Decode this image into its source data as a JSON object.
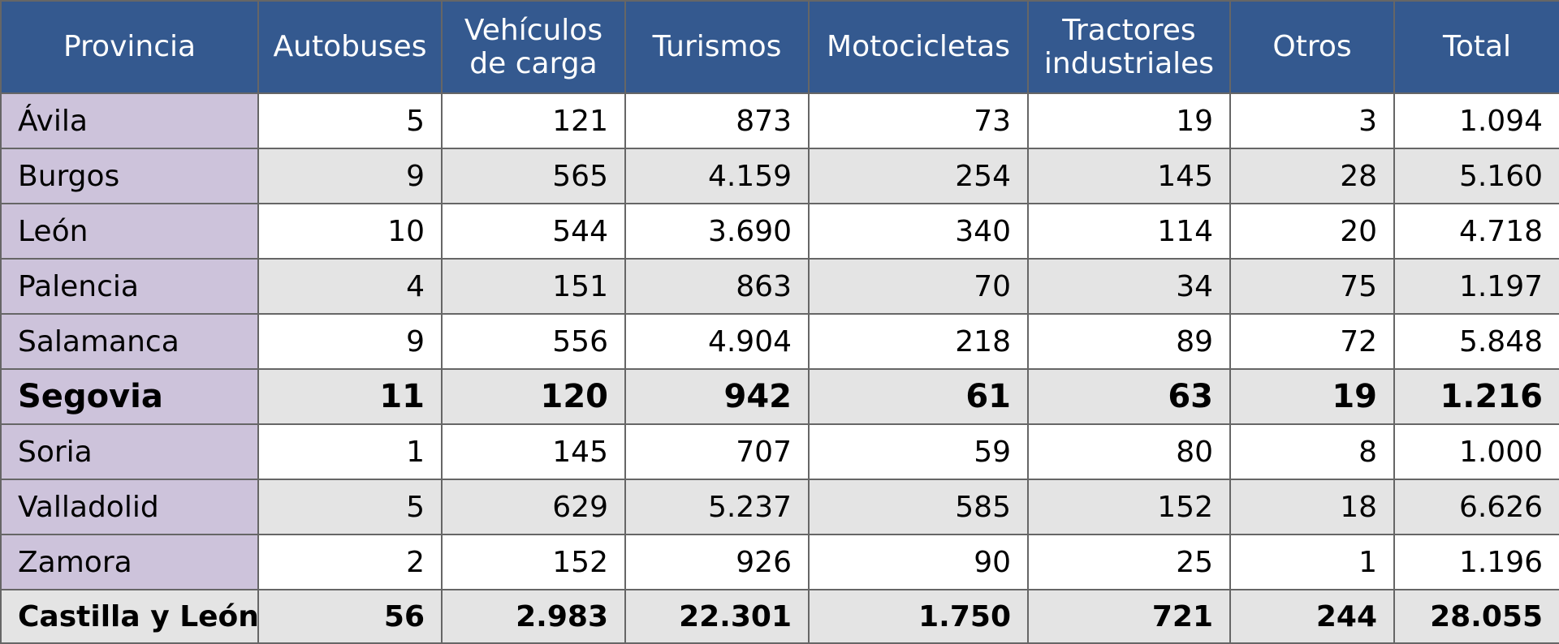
{
  "colors": {
    "header_bg": "#34598f",
    "header_text": "#ffffff",
    "province_bg": "#cdc3db",
    "row_alt_bg": "#e4e4e4",
    "border": "#666666"
  },
  "headers": [
    "Provincia",
    "Autobuses",
    "Vehículos de carga",
    "Turismos",
    "Motocicletas",
    "Tractores industriales",
    "Otros",
    "Total"
  ],
  "rows": [
    [
      "Ávila",
      "5",
      "121",
      "873",
      "73",
      "19",
      "3",
      "1.094"
    ],
    [
      "Burgos",
      "9",
      "565",
      "4.159",
      "254",
      "145",
      "28",
      "5.160"
    ],
    [
      "León",
      "10",
      "544",
      "3.690",
      "340",
      "114",
      "20",
      "4.718"
    ],
    [
      "Palencia",
      "4",
      "151",
      "863",
      "70",
      "34",
      "75",
      "1.197"
    ],
    [
      "Salamanca",
      "9",
      "556",
      "4.904",
      "218",
      "89",
      "72",
      "5.848"
    ],
    [
      "Segovia",
      "11",
      "120",
      "942",
      "61",
      "63",
      "19",
      "1.216"
    ],
    [
      "Soria",
      "1",
      "145",
      "707",
      "59",
      "80",
      "8",
      "1.000"
    ],
    [
      "Valladolid",
      "5",
      "629",
      "5.237",
      "585",
      "152",
      "18",
      "6.626"
    ],
    [
      "Zamora",
      "2",
      "152",
      "926",
      "90",
      "25",
      "1",
      "1.196"
    ]
  ],
  "total_row": [
    "Castilla y León",
    "56",
    "2.983",
    "22.301",
    "1.750",
    "721",
    "244",
    "28.055"
  ]
}
